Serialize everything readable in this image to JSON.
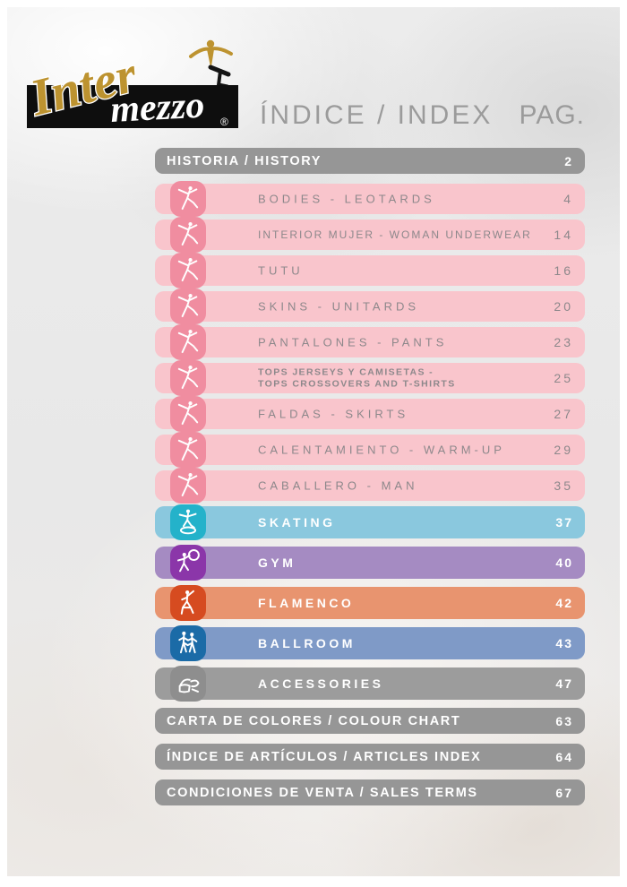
{
  "brand": {
    "word1": "Inter",
    "word2": "mezzo",
    "registered": "®"
  },
  "header": {
    "title": "ÍNDICE / INDEX",
    "page_label": "PAG."
  },
  "colors": {
    "brand_gold": "#bd9330",
    "logo_box_black": "#0e0e0e",
    "title_gray": "#9b9b9b",
    "band_gray": "#969696",
    "pink_bar": "#f9c5cc",
    "pink_chip": "#f08da0",
    "skating_bar": "#8ac8de",
    "skating_chip": "#24b2ca",
    "gym_bar": "#a58bc2",
    "gym_chip": "#8b36a9",
    "flamenco_bar": "#e8946f",
    "flamenco_chip": "#d64b20",
    "ballroom_bar": "#7f9ac7",
    "ballroom_chip": "#1b6ba7",
    "accessories_bar": "#9c9c9c",
    "accessories_chip": "#8e8e8e"
  },
  "index": {
    "rows": [
      {
        "slug": "historia",
        "kind": "band",
        "label": "HISTORIA / HISTORY",
        "page": "2",
        "bar_color": "#969696",
        "text_color": "#ffffff"
      },
      {
        "slug": "bodies-leotards",
        "kind": "category",
        "label": "BODIES - LEOTARDS",
        "page": "4",
        "icon": "ballet-dancer-icon",
        "bar_color": "#f9c5cc",
        "chip_color": "#f08da0",
        "text_color": "#8d888b"
      },
      {
        "slug": "interior-mujer",
        "kind": "category",
        "label": "INTERIOR MUJER - WOMAN UNDERWEAR",
        "page": "14",
        "icon": "ballet-dancer-icon",
        "bar_color": "#f9c5cc",
        "chip_color": "#f08da0",
        "text_color": "#8d888b"
      },
      {
        "slug": "tutu",
        "kind": "category",
        "label": "TUTU",
        "page": "16",
        "icon": "ballet-dancer-icon",
        "bar_color": "#f9c5cc",
        "chip_color": "#f08da0",
        "text_color": "#8d888b"
      },
      {
        "slug": "skins-unitards",
        "kind": "category",
        "label": "SKINS - UNITARDS",
        "page": "20",
        "icon": "ballet-dancer-icon",
        "bar_color": "#f9c5cc",
        "chip_color": "#f08da0",
        "text_color": "#8d888b"
      },
      {
        "slug": "pantalones",
        "kind": "category",
        "label": "PANTALONES - PANTS",
        "page": "23",
        "icon": "ballet-dancer-icon",
        "bar_color": "#f9c5cc",
        "chip_color": "#f08da0",
        "text_color": "#8d888b"
      },
      {
        "slug": "tops",
        "kind": "category",
        "label": [
          "TOPS JERSEYS Y CAMISETAS -",
          "TOPS CROSSOVERS AND T-SHIRTS"
        ],
        "page": "25",
        "icon": "ballet-dancer-icon",
        "bar_color": "#f9c5cc",
        "chip_color": "#f08da0",
        "text_color": "#8d888b"
      },
      {
        "slug": "faldas-skirts",
        "kind": "category",
        "label": "FALDAS - SKIRTS",
        "page": "27",
        "icon": "ballet-dancer-icon",
        "bar_color": "#f9c5cc",
        "chip_color": "#f08da0",
        "text_color": "#8d888b"
      },
      {
        "slug": "calentamiento",
        "kind": "category",
        "label": "CALENTAMIENTO - WARM-UP",
        "page": "29",
        "icon": "ballet-dancer-icon",
        "bar_color": "#f9c5cc",
        "chip_color": "#f08da0",
        "text_color": "#8d888b"
      },
      {
        "slug": "caballero-man",
        "kind": "category",
        "label": "CABALLERO - MAN",
        "page": "35",
        "icon": "ballet-dancer-icon",
        "bar_color": "#f9c5cc",
        "chip_color": "#f08da0",
        "text_color": "#8d888b"
      },
      {
        "slug": "skating",
        "kind": "sport",
        "label": "SKATING",
        "page": "37",
        "icon": "skating-icon",
        "bar_color": "#8ac8de",
        "chip_color": "#24b2ca",
        "text_color": "#ffffff"
      },
      {
        "slug": "gym",
        "kind": "sport",
        "label": "GYM",
        "page": "40",
        "icon": "gymnastics-icon",
        "bar_color": "#a58bc2",
        "chip_color": "#8b36a9",
        "text_color": "#ffffff"
      },
      {
        "slug": "flamenco",
        "kind": "sport",
        "label": "FLAMENCO",
        "page": "42",
        "icon": "flamenco-icon",
        "bar_color": "#e8946f",
        "chip_color": "#d64b20",
        "text_color": "#ffffff"
      },
      {
        "slug": "ballroom",
        "kind": "sport",
        "label": "BALLROOM",
        "page": "43",
        "icon": "ballroom-icon",
        "bar_color": "#7f9ac7",
        "chip_color": "#1b6ba7",
        "text_color": "#ffffff"
      },
      {
        "slug": "accessories",
        "kind": "sport",
        "label": "ACCESSORIES",
        "page": "47",
        "icon": "accessories-icon",
        "bar_color": "#9c9c9c",
        "chip_color": "#8e8e8e",
        "text_color": "#ffffff"
      },
      {
        "slug": "carta-colores",
        "kind": "band",
        "label": "CARTA DE COLORES / COLOUR CHART",
        "page": "63",
        "bar_color": "#969696",
        "text_color": "#ffffff"
      },
      {
        "slug": "indice-articulos",
        "kind": "band",
        "label": "ÍNDICE DE ARTÍCULOS / ARTICLES INDEX",
        "page": "64",
        "bar_color": "#969696",
        "text_color": "#ffffff"
      },
      {
        "slug": "condiciones",
        "kind": "band",
        "label": "CONDICIONES DE VENTA / SALES TERMS",
        "page": "67",
        "bar_color": "#969696",
        "text_color": "#ffffff"
      }
    ]
  }
}
